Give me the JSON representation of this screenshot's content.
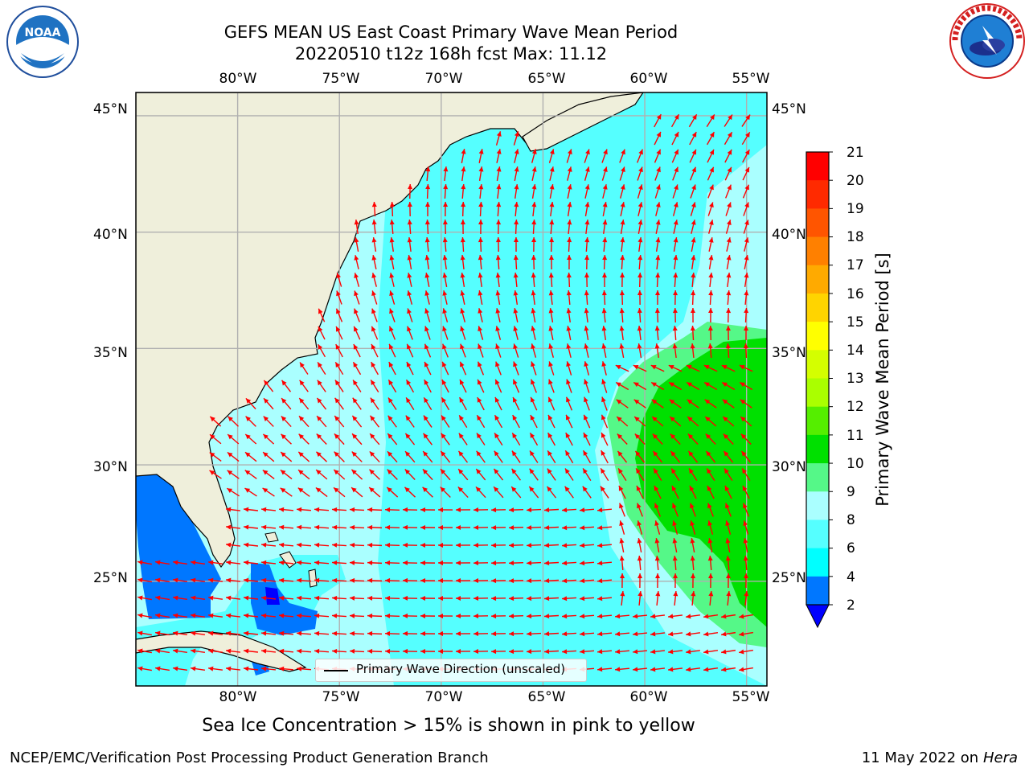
{
  "title": {
    "line1": "GEFS MEAN US East Coast Primary Wave Mean Period",
    "line2": "20220510 t12z 168h fcst   Max: 11.12"
  },
  "map": {
    "projection": "plate-carree",
    "lon_range": [
      -85,
      -54
    ],
    "lat_range": [
      20.5,
      46
    ],
    "top_lon_labels": [
      "80°W",
      "75°W",
      "70°W",
      "65°W",
      "60°W",
      "55°W"
    ],
    "bottom_lon_labels": [
      "80°W",
      "75°W",
      "70°W",
      "65°W",
      "60°W",
      "55°W"
    ],
    "left_lat_labels": [
      "45°N",
      "40°N",
      "35°N",
      "30°N",
      "25°N"
    ],
    "right_lat_labels": [
      "45°N",
      "40°N",
      "35°N",
      "30°N",
      "25°N"
    ],
    "land_color": "#efefdb",
    "arrow_color": "#ff0000",
    "legend_label": "Primary Wave Direction (unscaled)"
  },
  "colorbar": {
    "label": "Primary Wave Mean Period [s]",
    "ticks": [
      "21",
      "20",
      "19",
      "18",
      "17",
      "16",
      "15",
      "14",
      "13",
      "12",
      "11",
      "10",
      "9",
      "8",
      "6",
      "4",
      "2"
    ],
    "colors": [
      "#ff0000",
      "#ff2a00",
      "#ff5500",
      "#ff8000",
      "#ffaa00",
      "#ffd400",
      "#ffff00",
      "#d4ff00",
      "#aaff00",
      "#55ee00",
      "#00e000",
      "#55f888",
      "#aaffff",
      "#55ffff",
      "#00ffff",
      "#0077ff"
    ],
    "extend_color": "#0000ff"
  },
  "logos": {
    "left": "noaa-logo",
    "right": "nws-logo",
    "left_text": "NOAA",
    "right_text": "NATIONAL WEATHER SERVICE",
    "left_ring_text": "NATIONAL OCEANIC AND ATMOSPHERIC ADMINISTRATION · U.S. DEPARTMENT OF COMMERCE"
  },
  "note": "Sea Ice Concentration > 15% is shown in pink to yellow",
  "footer": {
    "left": "NCEP/EMC/Verification Post Processing Product Generation Branch",
    "right_date": "11 May 2022 on",
    "right_host": "Hera"
  }
}
